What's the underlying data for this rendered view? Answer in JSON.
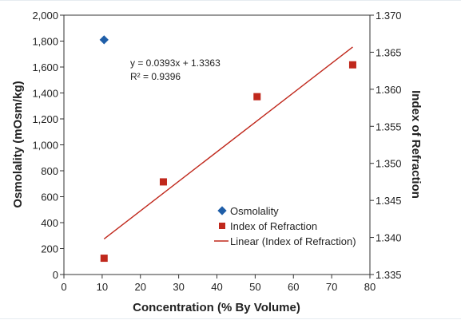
{
  "chart_data": {
    "type": "scatter",
    "xlabel": "Concentration (% By Volume)",
    "ylabel_left": "Osmolality (mOsm/kg)",
    "ylabel_right": "Index of Refraction",
    "x_ticks": [
      "0",
      "10",
      "20",
      "30",
      "40",
      "50",
      "60",
      "70",
      "80"
    ],
    "y_left_ticks": [
      "0",
      "200",
      "400",
      "600",
      "800",
      "1,000",
      "1,200",
      "1,400",
      "1,600",
      "1,800",
      "2,000"
    ],
    "y_right_ticks": [
      "1.335",
      "1.340",
      "1.345",
      "1.350",
      "1.355",
      "1.360",
      "1.365",
      "1.370"
    ],
    "xlim": [
      0,
      80
    ],
    "ylim_left": [
      0,
      2000
    ],
    "ylim_right": [
      1.335,
      1.37
    ],
    "grid": false,
    "legend_position": "bottom-right",
    "series": [
      {
        "name": "Osmolality",
        "axis": "left",
        "marker": "diamond",
        "color": "#1f5ea8",
        "points": [
          {
            "x": 10.5,
            "y": 1810
          }
        ]
      },
      {
        "name": "Index of Refraction",
        "axis": "right",
        "marker": "square",
        "color": "#c0281c",
        "points": [
          {
            "x": 10.5,
            "y": 1.3372
          },
          {
            "x": 26,
            "y": 1.3475
          },
          {
            "x": 50.5,
            "y": 1.359
          },
          {
            "x": 75.5,
            "y": 1.3633
          }
        ]
      },
      {
        "name": "Linear (Index of Refraction)",
        "axis": "right",
        "line": true,
        "color": "#c0281c",
        "points": [
          {
            "x": 10.5,
            "y": 1.3398
          },
          {
            "x": 75.5,
            "y": 1.3657
          }
        ]
      }
    ],
    "annotations": {
      "equation": "y = 0.0393x + 1.3363",
      "r_squared": "R² = 0.9396"
    }
  }
}
